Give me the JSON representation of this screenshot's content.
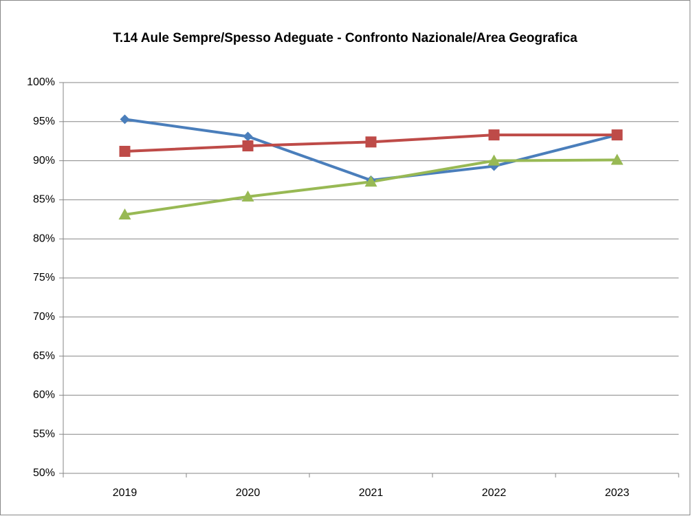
{
  "chart_data": {
    "type": "line",
    "title": "T.14 Aule Sempre/Spesso Adeguate - Confronto Nazionale/Area Geografica",
    "categories": [
      "2019",
      "2020",
      "2021",
      "2022",
      "2023"
    ],
    "series": [
      {
        "color": "#4a7ebb",
        "marker": "diamond",
        "values": [
          95.3,
          93.1,
          87.5,
          89.3,
          93.3
        ]
      },
      {
        "color": "#be4b48",
        "marker": "square",
        "values": [
          91.2,
          91.9,
          92.4,
          93.3,
          93.3
        ]
      },
      {
        "color": "#98b954",
        "marker": "triangle",
        "values": [
          83.1,
          85.4,
          87.3,
          90.0,
          90.1
        ]
      }
    ],
    "ylim": [
      50,
      100
    ],
    "yticks": [
      {
        "value": 50,
        "label": "50%"
      },
      {
        "value": 55,
        "label": "55%"
      },
      {
        "value": 60,
        "label": "60%"
      },
      {
        "value": 65,
        "label": "65%"
      },
      {
        "value": 70,
        "label": "70%"
      },
      {
        "value": 75,
        "label": "75%"
      },
      {
        "value": 80,
        "label": "80%"
      },
      {
        "value": 85,
        "label": "85%"
      },
      {
        "value": 90,
        "label": "90%"
      },
      {
        "value": 95,
        "label": "95%"
      },
      {
        "value": 100,
        "label": "100%"
      }
    ],
    "grid": true
  }
}
